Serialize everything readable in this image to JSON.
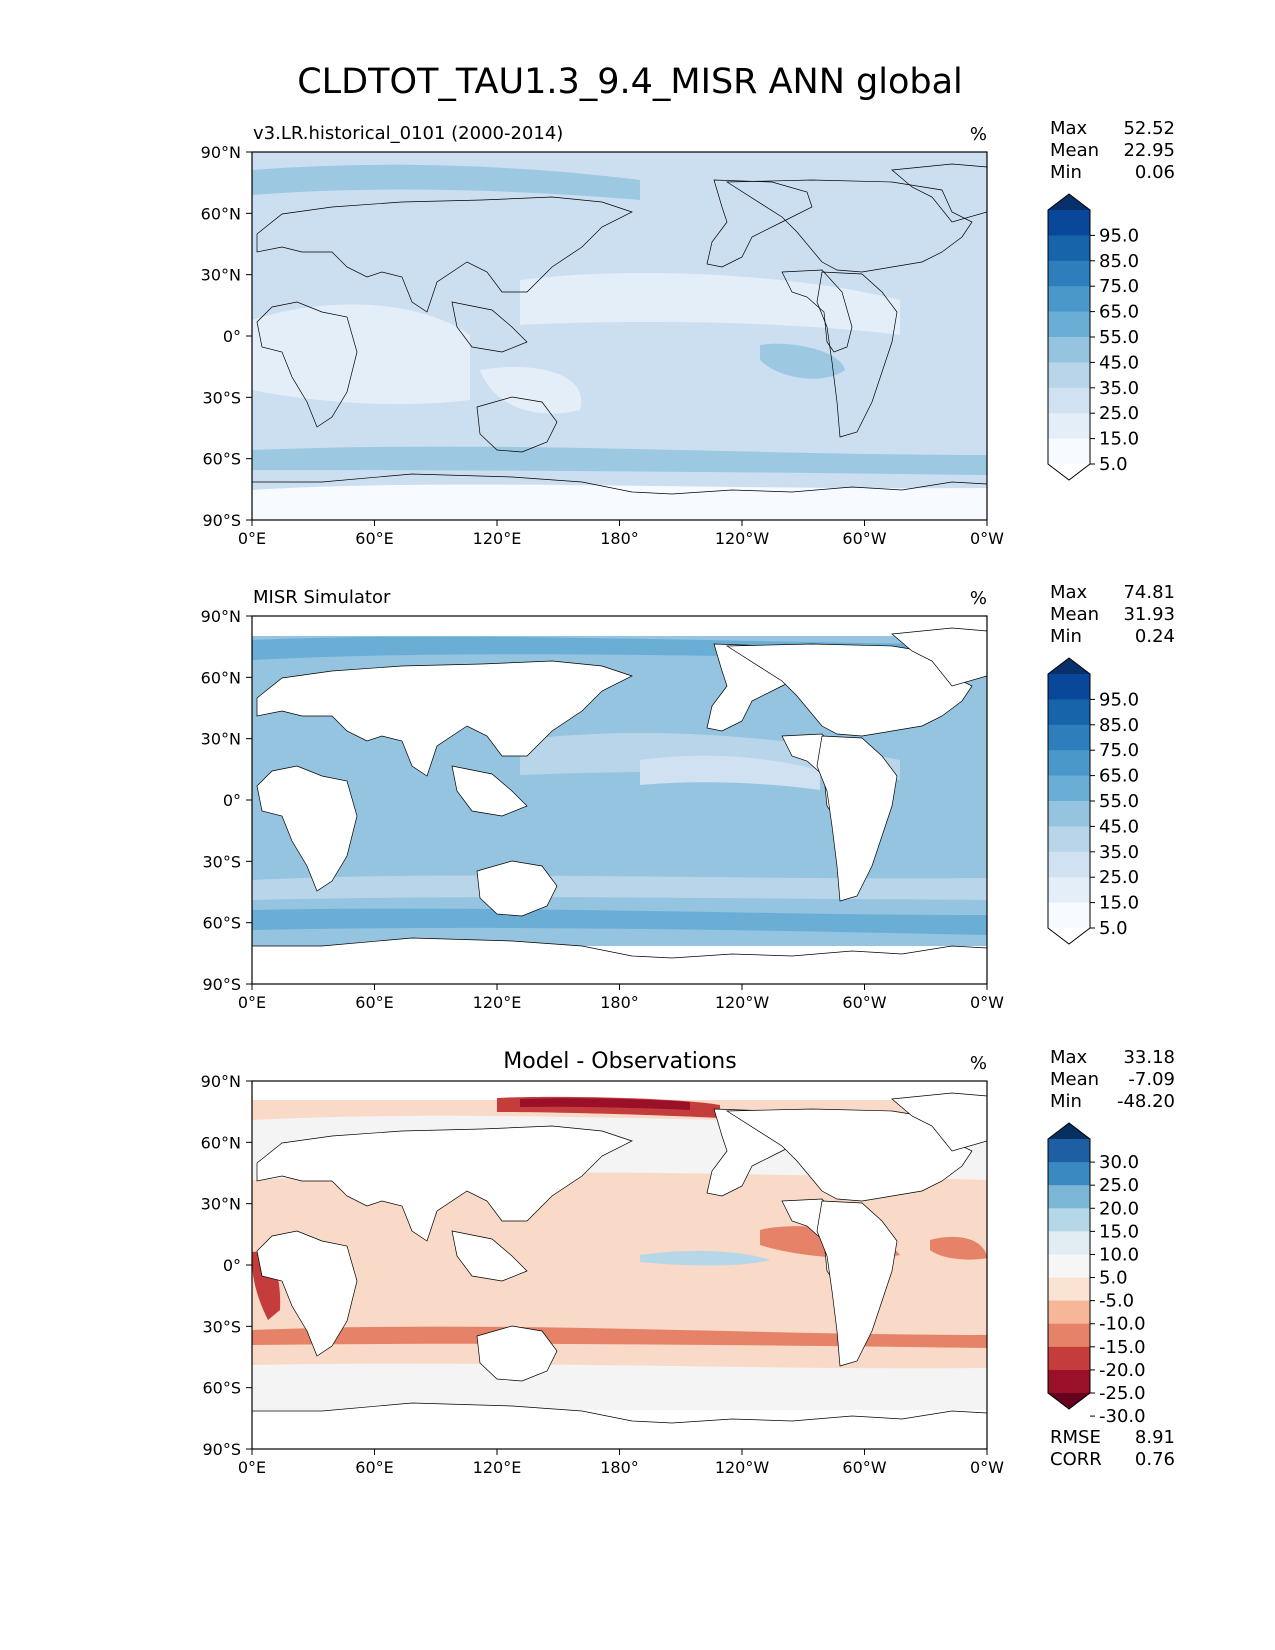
{
  "figure_title": "CLDTOT_TAU1.3_9.4_MISR ANN global",
  "lon_ticks": [
    "0°E",
    "60°E",
    "120°E",
    "180°",
    "120°W",
    "60°W",
    "0°W"
  ],
  "lat_ticks": [
    "90°N",
    "60°N",
    "30°N",
    "0°",
    "30°S",
    "60°S",
    "90°S"
  ],
  "stat_labels": {
    "max": "Max",
    "mean": "Mean",
    "min": "Min",
    "rmse": "RMSE",
    "corr": "CORR"
  },
  "panels": [
    {
      "title_left": "v3.LR.historical_0101 (2000-2014)",
      "title_center": "",
      "units": "%",
      "stats": {
        "max": "52.52",
        "mean": "22.95",
        "min": "0.06"
      },
      "colorbar": {
        "labels": [
          "95.0",
          "85.0",
          "75.0",
          "65.0",
          "55.0",
          "45.0",
          "35.0",
          "25.0",
          "15.0",
          "5.0"
        ],
        "colors": [
          "#08306b",
          "#08479a",
          "#1764ab",
          "#2f7ebc",
          "#4a98c9",
          "#6aaed6",
          "#94c4df",
          "#b8d5ea",
          "#d0e1f2",
          "#e3eef9",
          "#f7fbff",
          "#ffffff"
        ]
      },
      "map_colors": {
        "base": "#cbdff1",
        "mid": "#b8d5ea",
        "high": "#9cc8e2",
        "low": "#e3eef9",
        "very_low": "#f7fbff",
        "land": "none"
      }
    },
    {
      "title_left": "MISR Simulator",
      "title_center": "",
      "units": "%",
      "stats": {
        "max": "74.81",
        "mean": "31.93",
        "min": "0.24"
      },
      "colorbar": {
        "labels": [
          "95.0",
          "85.0",
          "75.0",
          "65.0",
          "55.0",
          "45.0",
          "35.0",
          "25.0",
          "15.0",
          "5.0"
        ],
        "colors": [
          "#08306b",
          "#08479a",
          "#1764ab",
          "#2f7ebc",
          "#4a98c9",
          "#6aaed6",
          "#94c4df",
          "#b8d5ea",
          "#d0e1f2",
          "#e3eef9",
          "#f7fbff",
          "#ffffff"
        ]
      },
      "map_colors": {
        "base": "#94c4df",
        "mid": "#b8d5ea",
        "high": "#6aaed6",
        "low": "#d0e1f2",
        "very_low": "#ffffff",
        "land": "#ffffff"
      }
    },
    {
      "title_left": "",
      "title_center": "Model - Observations",
      "units": "%",
      "stats": {
        "max": "33.18",
        "mean": "-7.09",
        "min": "-48.20"
      },
      "metrics": {
        "rmse": "8.91",
        "corr": "0.76"
      },
      "colorbar": {
        "labels": [
          "30.0",
          "25.0",
          "20.0",
          "15.0",
          "10.0",
          "5.0",
          "-5.0",
          "-10.0",
          "-15.0",
          "-20.0",
          "-25.0",
          "-30.0"
        ],
        "colors": [
          "#053061",
          "#1d5fa2",
          "#3a89c0",
          "#7bb6d6",
          "#b6d7e8",
          "#e1edf3",
          "#f6f6f6",
          "#fbe3d4",
          "#f7b698",
          "#e58267",
          "#c43c3c",
          "#9a1029",
          "#67001f"
        ]
      },
      "map_colors": {
        "base": "#f9d9c7",
        "mid": "#f4f4f4",
        "high": "#e58267",
        "low": "#c43c3c",
        "very_low": "#9a1029",
        "positive": "#b6d7e8",
        "land": "#ffffff"
      }
    }
  ]
}
